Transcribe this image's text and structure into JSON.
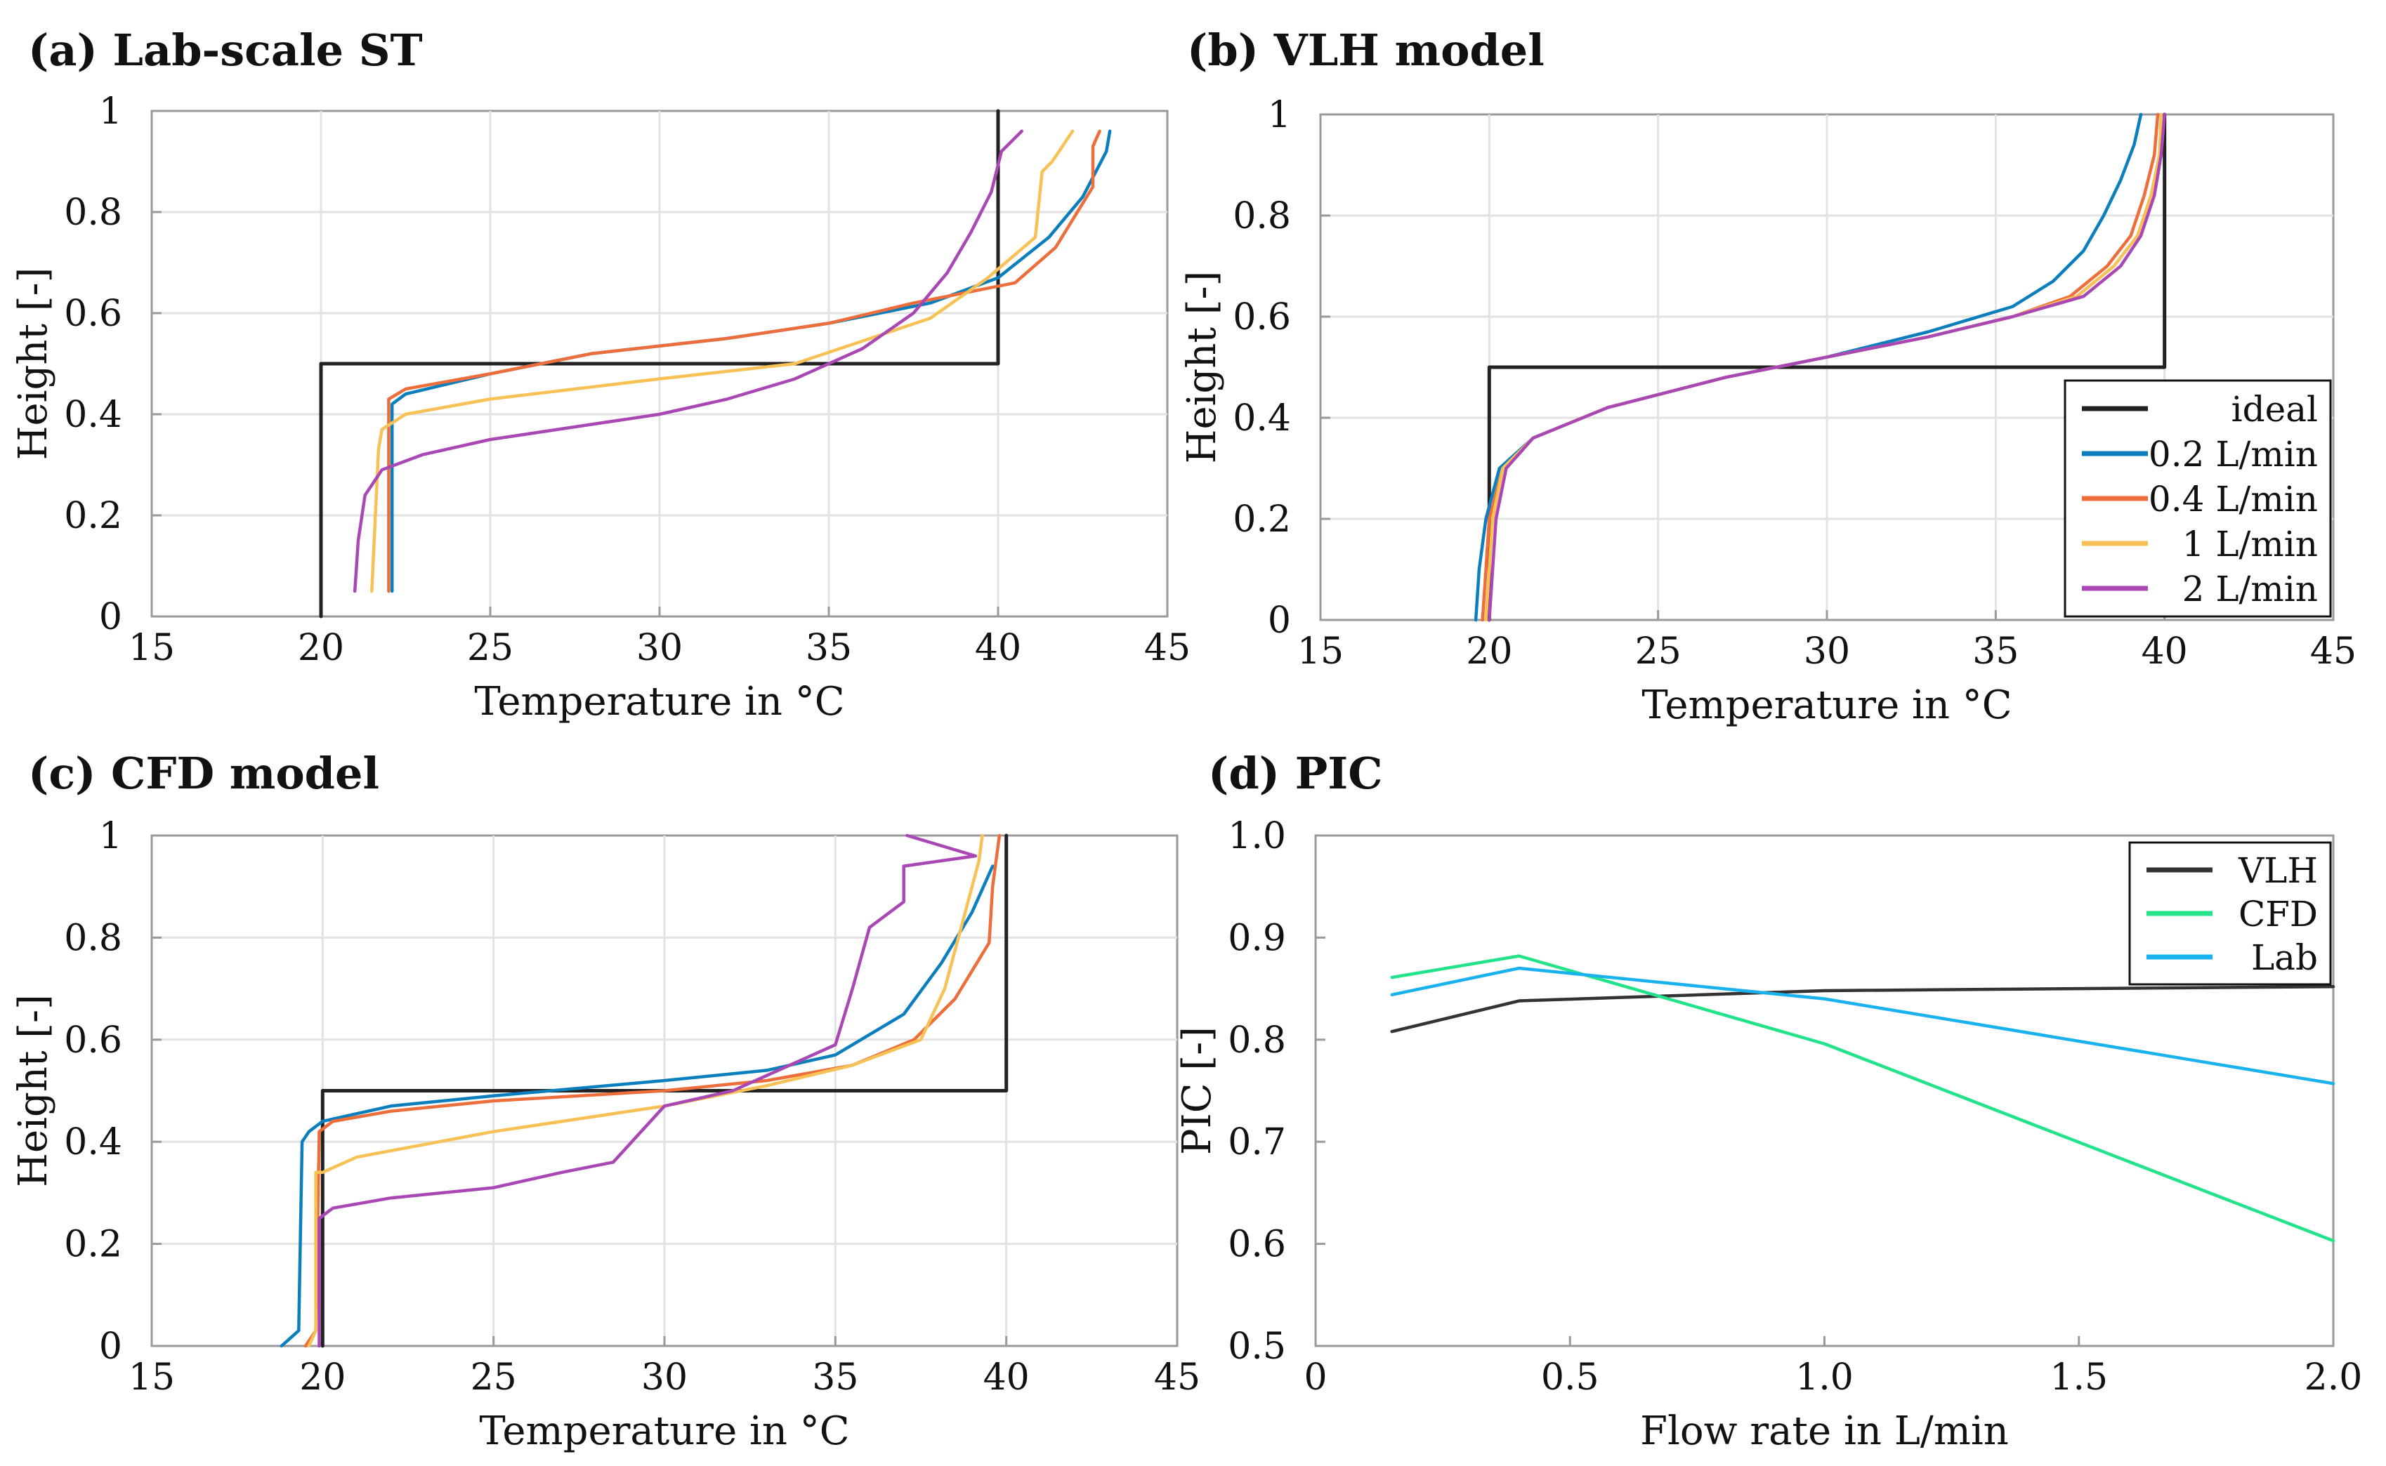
{
  "colors": {
    "ideal": "#222222",
    "flow_0_2": "#0b7fbd",
    "flow_0_4": "#ee6e3b",
    "flow_1": "#f8c155",
    "flow_2": "#a948b4",
    "vlh": "#333333",
    "cfd": "#22e38a",
    "lab": "#19b2ef",
    "grid": "#e2e2e2",
    "axis": "#9a9a9a"
  },
  "chart_data": [
    {
      "id": "a",
      "type": "line",
      "title": "(a) Lab-scale ST",
      "xlabel": "Temperature in °C",
      "ylabel": "Height [-]",
      "xlim": [
        15,
        45
      ],
      "ylim": [
        0,
        1
      ],
      "xticks": [
        "15",
        "20",
        "25",
        "30",
        "35",
        "40",
        "45"
      ],
      "yticks": [
        "0",
        "0.2",
        "0.4",
        "0.6",
        "0.8",
        "1"
      ],
      "grid": true,
      "series": [
        {
          "name": "ideal",
          "color_key": "ideal",
          "x": [
            20,
            20,
            40,
            40
          ],
          "y": [
            0,
            0.5,
            0.5,
            1
          ]
        },
        {
          "name": "0.2 L/min",
          "color_key": "flow_0_2",
          "x": [
            22.1,
            22.1,
            22.5,
            25,
            28,
            32,
            35,
            38,
            40,
            41.5,
            42.5,
            43.2,
            43.3
          ],
          "y": [
            0.05,
            0.42,
            0.44,
            0.48,
            0.52,
            0.55,
            0.58,
            0.62,
            0.67,
            0.75,
            0.83,
            0.92,
            0.96
          ]
        },
        {
          "name": "0.4 L/min",
          "color_key": "flow_0_4",
          "x": [
            22,
            22,
            22.5,
            25,
            28,
            32,
            35,
            37.5,
            40.5,
            41.7,
            42.8,
            42.8,
            43
          ],
          "y": [
            0.05,
            0.43,
            0.45,
            0.48,
            0.52,
            0.55,
            0.58,
            0.62,
            0.66,
            0.73,
            0.85,
            0.93,
            0.96
          ]
        },
        {
          "name": "1 L/min",
          "color_key": "flow_1",
          "x": [
            21.5,
            21.7,
            21.8,
            22.5,
            25,
            30,
            34,
            38,
            39.7,
            41.1,
            41.3,
            41.6,
            41.8,
            42.2
          ],
          "y": [
            0.05,
            0.33,
            0.37,
            0.4,
            0.43,
            0.47,
            0.5,
            0.59,
            0.67,
            0.75,
            0.88,
            0.9,
            0.92,
            0.96
          ]
        },
        {
          "name": "2 L/min",
          "color_key": "flow_2",
          "x": [
            21,
            21.1,
            21.3,
            21.8,
            23,
            25,
            28,
            30,
            32,
            34,
            36,
            37.5,
            38.5,
            39.2,
            39.8,
            40.1,
            40.7
          ],
          "y": [
            0.05,
            0.15,
            0.24,
            0.29,
            0.32,
            0.35,
            0.38,
            0.4,
            0.43,
            0.47,
            0.53,
            0.6,
            0.68,
            0.76,
            0.84,
            0.92,
            0.96
          ]
        }
      ]
    },
    {
      "id": "b",
      "type": "line",
      "title": "(b) VLH model",
      "xlabel": "Temperature in °C",
      "ylabel": "Height [-]",
      "xlim": [
        15,
        45
      ],
      "ylim": [
        0,
        1
      ],
      "xticks": [
        "15",
        "20",
        "25",
        "30",
        "35",
        "40",
        "45"
      ],
      "yticks": [
        "0",
        "0.2",
        "0.4",
        "0.6",
        "0.8",
        "1"
      ],
      "grid": true,
      "legend": {
        "position": "bottom-right",
        "entries": [
          "ideal",
          "0.2 L/min",
          "0.4 L/min",
          "1 L/min",
          "2 L/min"
        ]
      },
      "series": [
        {
          "name": "ideal",
          "color_key": "ideal",
          "x": [
            20,
            20,
            40,
            40
          ],
          "y": [
            0,
            0.5,
            0.5,
            1
          ]
        },
        {
          "name": "0.2 L/min",
          "color_key": "flow_0_2",
          "x": [
            19.6,
            19.7,
            19.9,
            20.3,
            21.3,
            23.5,
            27,
            30,
            33,
            35.5,
            36.7,
            37.6,
            38.2,
            38.7,
            39.1,
            39.3
          ],
          "y": [
            0,
            0.1,
            0.2,
            0.3,
            0.36,
            0.42,
            0.48,
            0.52,
            0.57,
            0.62,
            0.67,
            0.73,
            0.8,
            0.87,
            0.94,
            1
          ]
        },
        {
          "name": "0.4 L/min",
          "color_key": "flow_0_4",
          "x": [
            19.8,
            19.9,
            20,
            20.4,
            21.3,
            23.5,
            27,
            30,
            33,
            35.5,
            37.2,
            38.3,
            39,
            39.4,
            39.7,
            39.8
          ],
          "y": [
            0,
            0.1,
            0.2,
            0.3,
            0.36,
            0.42,
            0.48,
            0.52,
            0.56,
            0.6,
            0.64,
            0.7,
            0.76,
            0.84,
            0.92,
            1
          ]
        },
        {
          "name": "1 L/min",
          "color_key": "flow_1",
          "x": [
            19.9,
            20,
            20.1,
            20.4,
            21.3,
            23.5,
            27,
            30,
            33,
            35.5,
            37.4,
            38.5,
            39.2,
            39.6,
            39.85,
            39.9
          ],
          "y": [
            0,
            0.1,
            0.2,
            0.3,
            0.36,
            0.42,
            0.48,
            0.52,
            0.56,
            0.6,
            0.64,
            0.7,
            0.76,
            0.84,
            0.92,
            1
          ]
        },
        {
          "name": "2 L/min",
          "color_key": "flow_2",
          "x": [
            20,
            20.1,
            20.2,
            20.5,
            21.3,
            23.5,
            27,
            30,
            33,
            35.5,
            37.6,
            38.7,
            39.3,
            39.7,
            39.9,
            40
          ],
          "y": [
            0,
            0.1,
            0.2,
            0.3,
            0.36,
            0.42,
            0.48,
            0.52,
            0.56,
            0.6,
            0.64,
            0.7,
            0.76,
            0.84,
            0.92,
            1
          ]
        }
      ]
    },
    {
      "id": "c",
      "type": "line",
      "title": "(c) CFD model",
      "xlabel": "Temperature in °C",
      "ylabel": "Height [-]",
      "xlim": [
        15,
        45
      ],
      "ylim": [
        0,
        1
      ],
      "xticks": [
        "15",
        "20",
        "25",
        "30",
        "35",
        "40",
        "45"
      ],
      "yticks": [
        "0",
        "0.2",
        "0.4",
        "0.6",
        "0.8",
        "1"
      ],
      "grid": true,
      "series": [
        {
          "name": "ideal",
          "color_key": "ideal",
          "x": [
            20,
            20,
            40,
            40
          ],
          "y": [
            0,
            0.5,
            0.5,
            1
          ]
        },
        {
          "name": "0.2 L/min",
          "color_key": "flow_0_2",
          "x": [
            18.8,
            19.3,
            19.4,
            19.6,
            20,
            22,
            25,
            30,
            33,
            35,
            37,
            38.1,
            39,
            39.6
          ],
          "y": [
            0,
            0.03,
            0.4,
            0.42,
            0.44,
            0.47,
            0.49,
            0.52,
            0.54,
            0.57,
            0.65,
            0.75,
            0.85,
            0.94
          ]
        },
        {
          "name": "0.4 L/min",
          "color_key": "flow_0_4",
          "x": [
            19.5,
            19.8,
            19.9,
            20.3,
            22,
            25,
            30,
            33,
            35.5,
            37.3,
            38.5,
            39.5,
            39.6,
            39.8
          ],
          "y": [
            0,
            0.03,
            0.42,
            0.44,
            0.46,
            0.48,
            0.5,
            0.52,
            0.55,
            0.6,
            0.68,
            0.79,
            0.9,
            1
          ]
        },
        {
          "name": "1 L/min",
          "color_key": "flow_1",
          "x": [
            19.6,
            19.8,
            19.8,
            20,
            21,
            25,
            30,
            33,
            35.5,
            37.5,
            38.2,
            38.8,
            39.2,
            39.3
          ],
          "y": [
            0,
            0.03,
            0.34,
            0.34,
            0.37,
            0.42,
            0.47,
            0.51,
            0.55,
            0.6,
            0.7,
            0.85,
            0.95,
            1
          ]
        },
        {
          "name": "2 L/min",
          "color_key": "flow_2",
          "x": [
            19.9,
            19.9,
            20.3,
            22,
            25,
            27,
            28.5,
            30,
            32,
            35,
            35.5,
            36,
            37,
            37,
            39.1,
            37.1
          ],
          "y": [
            0,
            0.25,
            0.27,
            0.29,
            0.31,
            0.34,
            0.36,
            0.47,
            0.5,
            0.59,
            0.7,
            0.82,
            0.87,
            0.94,
            0.96,
            1
          ]
        }
      ]
    },
    {
      "id": "d",
      "type": "line",
      "title": "(d) PIC",
      "xlabel": "Flow rate in L/min",
      "ylabel": "PIC [-]",
      "xlim": [
        0,
        2
      ],
      "ylim": [
        0.5,
        1
      ],
      "xticks": [
        "0",
        "0.5",
        "1.0",
        "1.5",
        "2.0"
      ],
      "yticks": [
        "0.5",
        "0.6",
        "0.7",
        "0.8",
        "0.9",
        "1.0"
      ],
      "grid": false,
      "legend": {
        "position": "top-right",
        "entries": [
          "VLH",
          "CFD",
          "Lab"
        ]
      },
      "series": [
        {
          "name": "VLH",
          "color_key": "vlh",
          "x": [
            0.15,
            0.4,
            1.0,
            2.0
          ],
          "y": [
            0.808,
            0.838,
            0.848,
            0.852
          ]
        },
        {
          "name": "CFD",
          "color_key": "cfd",
          "x": [
            0.15,
            0.4,
            1.0,
            2.0
          ],
          "y": [
            0.861,
            0.882,
            0.796,
            0.603
          ]
        },
        {
          "name": "Lab",
          "color_key": "lab",
          "x": [
            0.15,
            0.4,
            1.0,
            2.0
          ],
          "y": [
            0.844,
            0.87,
            0.84,
            0.757
          ]
        }
      ]
    }
  ]
}
